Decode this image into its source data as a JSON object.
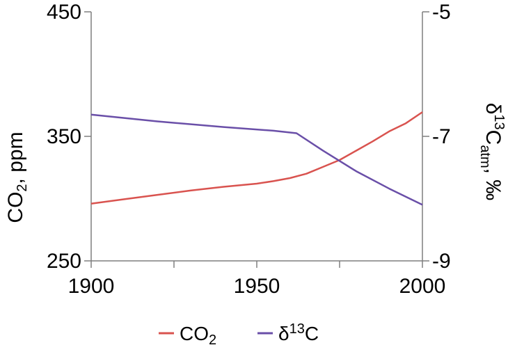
{
  "chart_data": {
    "type": "line",
    "x_axis": {
      "min": 1900,
      "max": 2000,
      "ticks": [
        "1900",
        "1950",
        "2000"
      ],
      "minor_ticks": [
        1925,
        1975
      ],
      "label": ""
    },
    "y_axis_left": {
      "min": 250,
      "max": 450,
      "ticks": [
        "450",
        "350",
        "250"
      ],
      "label_main": "CO",
      "label_sub": "2",
      "label_rest": ", ppm"
    },
    "y_axis_right": {
      "min": -9,
      "max": -5,
      "ticks": [
        "-5",
        "-7",
        "-9"
      ],
      "label_delta": "δ",
      "label_sup": "13",
      "label_c": "C",
      "label_sub": "atm",
      "label_rest": ", ‰"
    },
    "grid": false,
    "legend_position": "bottom",
    "series": [
      {
        "name_main": "CO",
        "name_sub": "2",
        "axis": "left",
        "color": "#d9534f",
        "points": [
          [
            1900,
            296
          ],
          [
            1910,
            299.5
          ],
          [
            1920,
            303
          ],
          [
            1930,
            306.5
          ],
          [
            1940,
            309.5
          ],
          [
            1950,
            312
          ],
          [
            1955,
            314
          ],
          [
            1960,
            316.5
          ],
          [
            1965,
            320
          ],
          [
            1970,
            325.5
          ],
          [
            1975,
            331
          ],
          [
            1980,
            338.5
          ],
          [
            1985,
            346
          ],
          [
            1990,
            354
          ],
          [
            1995,
            360.5
          ],
          [
            2000,
            369.5
          ]
        ]
      },
      {
        "name_delta": "δ",
        "name_sup": "13",
        "name_c": "C",
        "axis": "right",
        "color": "#6a4fa8",
        "points": [
          [
            1900,
            -6.65
          ],
          [
            1920,
            -6.76
          ],
          [
            1940,
            -6.85
          ],
          [
            1955,
            -6.91
          ],
          [
            1962,
            -6.95
          ],
          [
            1970,
            -7.23
          ],
          [
            1980,
            -7.56
          ],
          [
            1990,
            -7.84
          ],
          [
            2000,
            -8.1
          ]
        ]
      }
    ]
  }
}
